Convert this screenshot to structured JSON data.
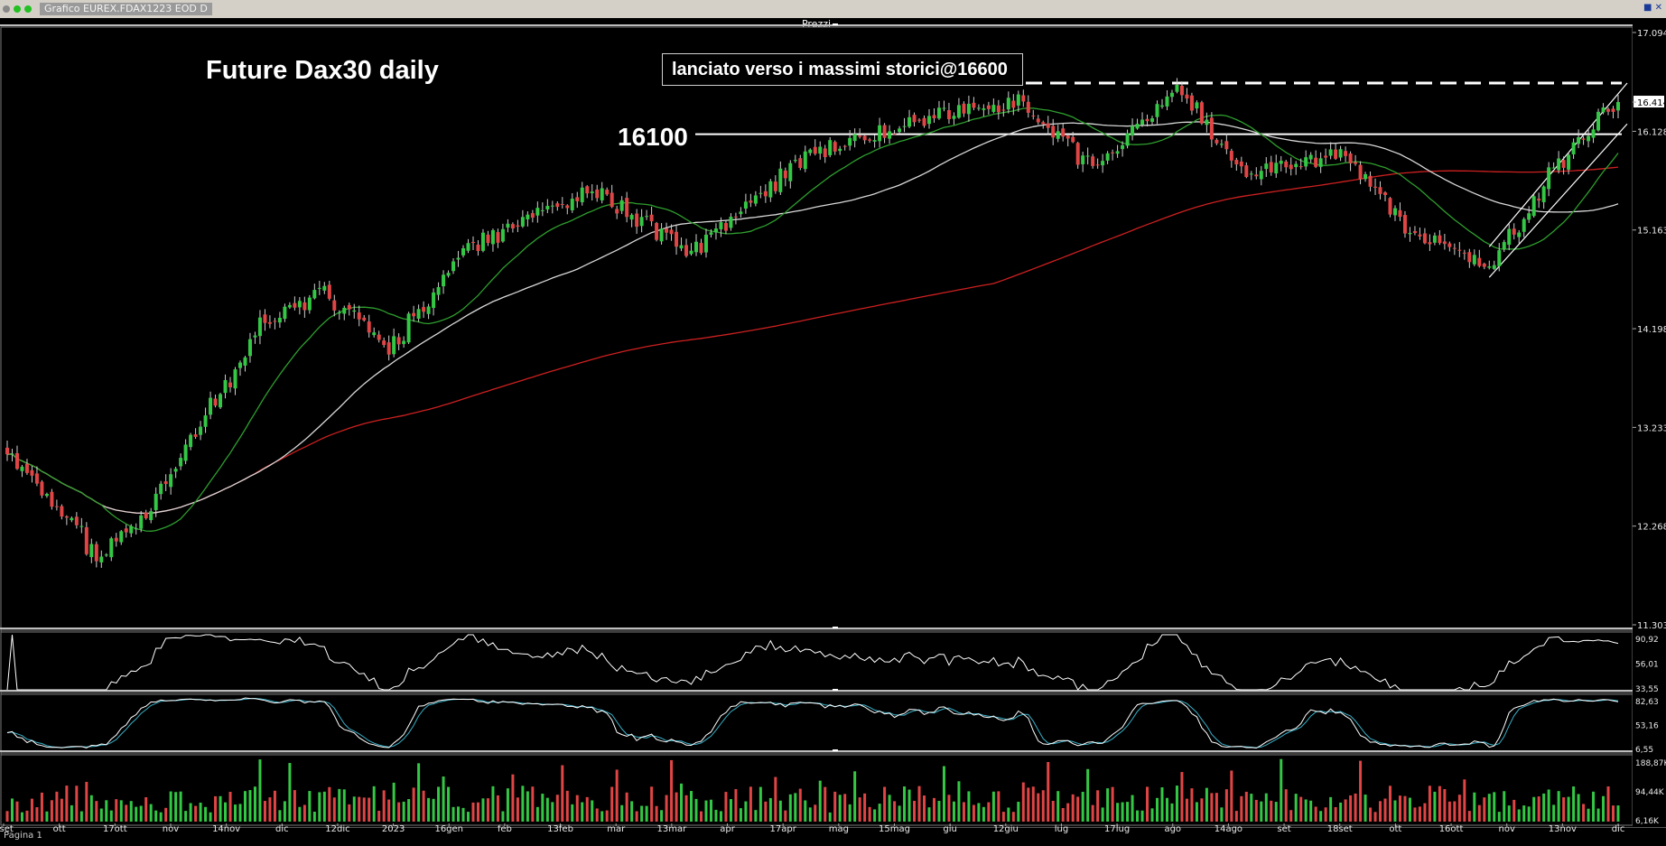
{
  "window": {
    "title": "Grafico EUREX.FDAX1223 EOD D",
    "panel_label": "Prezzi",
    "page_label": "Pagina 1"
  },
  "colors": {
    "background": "#000000",
    "candle_up": "#34c745",
    "candle_down": "#e04545",
    "ma_short": "#2e9e2e",
    "ma_medium": "#d8d8d8",
    "ma_long": "#cc2020",
    "oscillator": "#ffffff",
    "stochastic_k": "#ffffff",
    "stochastic_d": "#38b0c8",
    "volume_up": "#34c745",
    "volume_down": "#e04545"
  },
  "chart_data": {
    "type": "candlestick",
    "title": "Future Dax30 daily",
    "annotation": "lanciato verso i massimi storici@16600",
    "level_label": "16100",
    "levels": [
      {
        "value": 16100,
        "style": "solid",
        "label": "16100"
      },
      {
        "value": 16600,
        "style": "dashed"
      }
    ],
    "last_price": "16.414",
    "y_ticks": [
      "17.094",
      "16.414",
      "16.128",
      "15.163",
      "14.198",
      "13.233",
      "12.268",
      "11.303"
    ],
    "ylim": [
      11303,
      17094
    ],
    "x_labels": [
      "2set",
      "ott",
      "17ott",
      "nov",
      "14nov",
      "dic",
      "12dic",
      "2023",
      "16gen",
      "feb",
      "13feb",
      "mar",
      "13mar",
      "apr",
      "17apr",
      "mag",
      "15mag",
      "giu",
      "12giu",
      "lug",
      "17lug",
      "ago",
      "14ago",
      "set",
      "18set",
      "ott",
      "16ott",
      "nov",
      "13nov",
      "dic"
    ],
    "close_anchors": [
      {
        "date": "2022-09-02",
        "close": 13050
      },
      {
        "date": "2022-09-29",
        "close": 11950
      },
      {
        "date": "2022-10-10",
        "close": 12300
      },
      {
        "date": "2022-10-25",
        "close": 13100
      },
      {
        "date": "2022-11-14",
        "close": 14250
      },
      {
        "date": "2022-12-01",
        "close": 14550
      },
      {
        "date": "2022-12-20",
        "close": 14000
      },
      {
        "date": "2023-01-09",
        "close": 14950
      },
      {
        "date": "2023-02-15",
        "close": 15550
      },
      {
        "date": "2023-03-15",
        "close": 14950
      },
      {
        "date": "2023-04-17",
        "close": 15900
      },
      {
        "date": "2023-05-19",
        "close": 16250
      },
      {
        "date": "2023-06-16",
        "close": 16420
      },
      {
        "date": "2023-07-07",
        "close": 15750
      },
      {
        "date": "2023-07-31",
        "close": 16550
      },
      {
        "date": "2023-08-18",
        "close": 15700
      },
      {
        "date": "2023-09-15",
        "close": 15900
      },
      {
        "date": "2023-10-04",
        "close": 15150
      },
      {
        "date": "2023-10-26",
        "close": 14800
      },
      {
        "date": "2023-11-15",
        "close": 15800
      },
      {
        "date": "2023-12-01",
        "close": 16414
      }
    ],
    "indicators": {
      "oscillator": {
        "ticks": [
          "90,92",
          "56,01",
          "33,55"
        ]
      },
      "stochastic": {
        "ticks": [
          "82,63",
          "53,16",
          "6,55"
        ],
        "series": [
          "%K",
          "%D"
        ]
      },
      "volume": {
        "ticks": [
          "188,87K",
          "94,44K",
          "6,16K"
        ]
      }
    }
  }
}
